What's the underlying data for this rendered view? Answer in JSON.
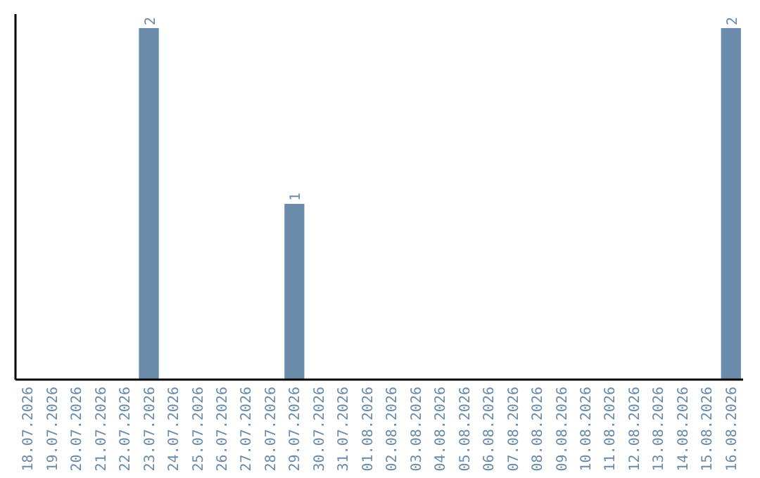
{
  "chart_data": {
    "type": "bar",
    "categories": [
      "18.07.2026",
      "19.07.2026",
      "20.07.2026",
      "21.07.2026",
      "22.07.2026",
      "23.07.2026",
      "24.07.2026",
      "25.07.2026",
      "26.07.2026",
      "27.07.2026",
      "28.07.2026",
      "29.07.2026",
      "30.07.2026",
      "31.07.2026",
      "01.08.2026",
      "02.08.2026",
      "03.08.2026",
      "04.08.2026",
      "05.08.2026",
      "06.08.2026",
      "07.08.2026",
      "08.08.2026",
      "09.08.2026",
      "10.08.2026",
      "11.08.2026",
      "12.08.2026",
      "13.08.2026",
      "14.08.2026",
      "15.08.2026",
      "16.08.2026"
    ],
    "values": [
      0,
      0,
      0,
      0,
      0,
      2,
      0,
      0,
      0,
      0,
      0,
      1,
      0,
      0,
      0,
      0,
      0,
      0,
      0,
      0,
      0,
      0,
      0,
      0,
      0,
      0,
      0,
      0,
      0,
      2
    ],
    "value_labels": [
      null,
      null,
      null,
      null,
      null,
      "2",
      null,
      null,
      null,
      null,
      null,
      "1",
      null,
      null,
      null,
      null,
      null,
      null,
      null,
      null,
      null,
      null,
      null,
      null,
      null,
      null,
      null,
      null,
      null,
      "2"
    ],
    "color": "#6a8caa",
    "tick_labels": "x",
    "grid": false
  }
}
